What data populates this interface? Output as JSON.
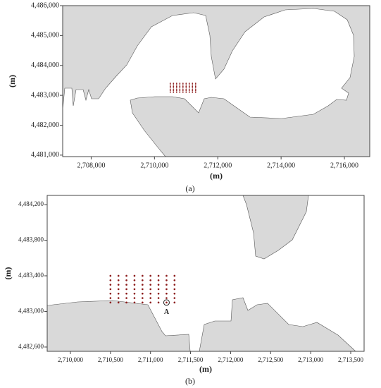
{
  "chart_data": [
    {
      "type": "scatter",
      "caption": "(a)",
      "x_label": "(m)",
      "y_label": "(m)",
      "color": "#8b1a1a",
      "xlim": [
        2707100,
        2716800
      ],
      "ylim": [
        4480950,
        4486000
      ],
      "xticks": [
        {
          "value": 2708000,
          "label": "2,708,000"
        },
        {
          "value": 2710000,
          "label": "2,710,000"
        },
        {
          "value": 2712000,
          "label": "2,712,000"
        },
        {
          "value": 2714000,
          "label": "2,714,000"
        },
        {
          "value": 2716000,
          "label": "2,716,000"
        }
      ],
      "yticks": [
        {
          "value": 4481000,
          "label": "4,481,000"
        },
        {
          "value": 4482000,
          "label": "4,482,000"
        },
        {
          "value": 4483000,
          "label": "4,483,000"
        },
        {
          "value": 4484000,
          "label": "4,484,000"
        },
        {
          "value": 4485000,
          "label": "4,485,000"
        },
        {
          "value": 4486000,
          "label": "4,486,000"
        }
      ],
      "x": [
        2710500,
        2710600,
        2710700,
        2710800,
        2710900,
        2711000,
        2711100,
        2711200,
        2711300,
        2710500,
        2710600,
        2710700,
        2710800,
        2710900,
        2711000,
        2711100,
        2711200,
        2711300,
        2710500,
        2710600,
        2710700,
        2710800,
        2710900,
        2711000,
        2711100,
        2711200,
        2711300,
        2710500,
        2710600,
        2710700,
        2710800,
        2710900,
        2711000,
        2711100,
        2711200,
        2711300,
        2710500,
        2710600,
        2710700,
        2710800,
        2710900,
        2711000,
        2711100,
        2711200,
        2711300,
        2710500,
        2710600,
        2710700,
        2710800,
        2710900,
        2711000,
        2711100,
        2711200,
        2711300,
        2710500,
        2710600,
        2710700,
        2710800,
        2710900,
        2711000,
        2711100,
        2711200,
        2711300
      ],
      "y": [
        4483400,
        4483400,
        4483400,
        4483400,
        4483400,
        4483400,
        4483400,
        4483400,
        4483400,
        4483350,
        4483350,
        4483350,
        4483350,
        4483350,
        4483350,
        4483350,
        4483350,
        4483350,
        4483300,
        4483300,
        4483300,
        4483300,
        4483300,
        4483300,
        4483300,
        4483300,
        4483300,
        4483250,
        4483250,
        4483250,
        4483250,
        4483250,
        4483250,
        4483250,
        4483250,
        4483250,
        4483200,
        4483200,
        4483200,
        4483200,
        4483200,
        4483200,
        4483200,
        4483200,
        4483200,
        4483150,
        4483150,
        4483150,
        4483150,
        4483150,
        4483150,
        4483150,
        4483150,
        4483150,
        4483100,
        4483100,
        4483100,
        4483100,
        4483100,
        4483100,
        4483100,
        4483100,
        4483100
      ]
    },
    {
      "type": "scatter",
      "caption": "(b)",
      "x_label": "(m)",
      "y_label": "(m)",
      "color": "#8b1a1a",
      "xlim": [
        2709710,
        2713667
      ],
      "ylim": [
        4482552,
        4484303
      ],
      "xticks": [
        {
          "value": 2710000,
          "label": "2,710,000"
        },
        {
          "value": 2710500,
          "label": "2,710,500"
        },
        {
          "value": 2711000,
          "label": "2,711,000"
        },
        {
          "value": 2711500,
          "label": "2,711,500"
        },
        {
          "value": 2712000,
          "label": "2,712,000"
        },
        {
          "value": 2712500,
          "label": "2,712,500"
        },
        {
          "value": 2713000,
          "label": "2,713,000"
        },
        {
          "value": 2713500,
          "label": "2,713,500"
        }
      ],
      "yticks": [
        {
          "value": 4482600,
          "label": "4,482,600"
        },
        {
          "value": 4483000,
          "label": "4,483,000"
        },
        {
          "value": 4483400,
          "label": "4,483,400"
        },
        {
          "value": 4483800,
          "label": "4,483,800"
        },
        {
          "value": 4484200,
          "label": "4,484,200"
        }
      ],
      "x": [
        2710500,
        2710600,
        2710700,
        2710800,
        2710900,
        2711000,
        2711100,
        2711200,
        2711300,
        2710500,
        2710600,
        2710700,
        2710800,
        2710900,
        2711000,
        2711100,
        2711200,
        2711300,
        2710500,
        2710600,
        2710700,
        2710800,
        2710900,
        2711000,
        2711100,
        2711200,
        2711300,
        2710500,
        2710600,
        2710700,
        2710800,
        2710900,
        2711000,
        2711100,
        2711200,
        2711300,
        2710500,
        2710600,
        2710700,
        2710800,
        2710900,
        2711000,
        2711100,
        2711200,
        2711300,
        2710500,
        2710600,
        2710700,
        2710800,
        2710900,
        2711000,
        2711100,
        2711200,
        2711300,
        2710500,
        2710600,
        2710700,
        2710800,
        2710900,
        2711000,
        2711100,
        2711200,
        2711300
      ],
      "y": [
        4483400,
        4483400,
        4483400,
        4483400,
        4483400,
        4483400,
        4483400,
        4483400,
        4483400,
        4483350,
        4483350,
        4483350,
        4483350,
        4483350,
        4483350,
        4483350,
        4483350,
        4483350,
        4483300,
        4483300,
        4483300,
        4483300,
        4483300,
        4483300,
        4483300,
        4483300,
        4483300,
        4483250,
        4483250,
        4483250,
        4483250,
        4483250,
        4483250,
        4483250,
        4483250,
        4483250,
        4483200,
        4483200,
        4483200,
        4483200,
        4483200,
        4483200,
        4483200,
        4483200,
        4483200,
        4483150,
        4483150,
        4483150,
        4483150,
        4483150,
        4483150,
        4483150,
        4483150,
        4483150,
        4483100,
        4483100,
        4483100,
        4483100,
        4483100,
        4483100,
        4483100,
        4483100,
        4483100
      ],
      "annotation": {
        "text": "A",
        "x": 2711200,
        "y": 4483100
      }
    }
  ]
}
